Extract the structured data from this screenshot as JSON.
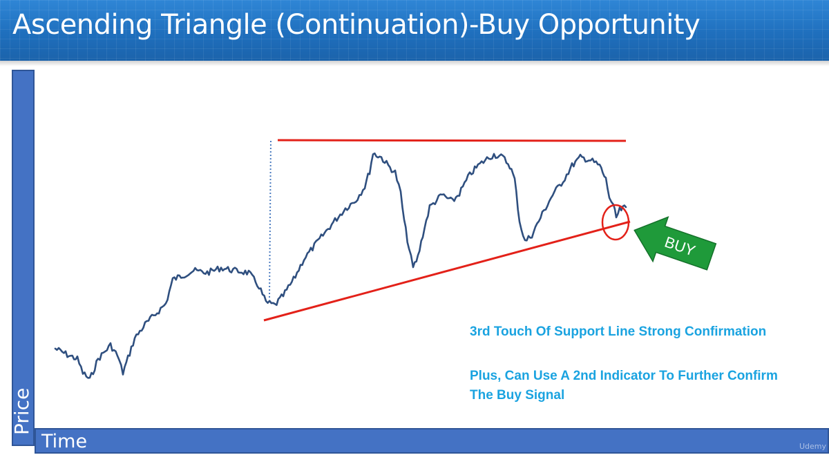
{
  "title": "Ascending Triangle (Continuation)-Buy Opportunity",
  "axes": {
    "y_label": "Price",
    "x_label": "Time"
  },
  "signal": {
    "label": "BUY",
    "arrow_color": "#1f9a3a"
  },
  "notes": [
    "3rd Touch Of Support Line Strong Confirmation",
    "Plus, Can Use A 2nd Indicator To Further Confirm",
    "The Buy Signal"
  ],
  "colors": {
    "price_line": "#2f4f7f",
    "trend_lines": "#e32119",
    "axis_fill": "#4472c4",
    "note_text": "#1aa3e0",
    "header": "#1f6fbd"
  },
  "watermark": "Udemy"
}
